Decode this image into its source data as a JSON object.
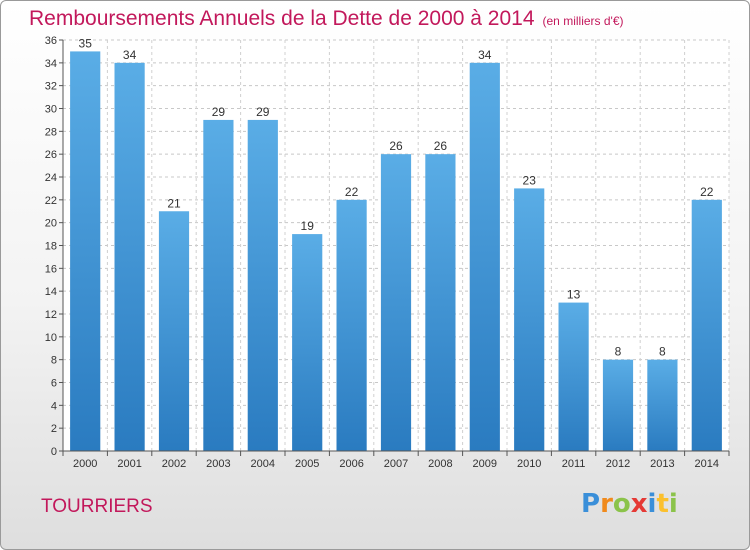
{
  "title": "Remboursements Annuels de la Dette de 2000 à 2014",
  "subtitle": "(en milliers d'€)",
  "city": "TOURRIERS",
  "logo": "Proxiti",
  "chart_data": {
    "type": "bar",
    "title": "Remboursements Annuels de la Dette de 2000 à 2014",
    "subtitle": "(en milliers d'€)",
    "categories": [
      "2000",
      "2001",
      "2002",
      "2003",
      "2004",
      "2005",
      "2006",
      "2007",
      "2008",
      "2009",
      "2010",
      "2011",
      "2012",
      "2013",
      "2014"
    ],
    "values": [
      35,
      34,
      21,
      29,
      29,
      19,
      22,
      26,
      26,
      34,
      23,
      13,
      8,
      8,
      22
    ],
    "ylim": [
      0,
      36
    ],
    "yticks": [
      0,
      2,
      4,
      6,
      8,
      10,
      12,
      14,
      16,
      18,
      20,
      22,
      24,
      26,
      28,
      30,
      32,
      34,
      36
    ],
    "grid": true,
    "bar_color_top": "#5aade6",
    "bar_color_bottom": "#2a7bc0"
  }
}
